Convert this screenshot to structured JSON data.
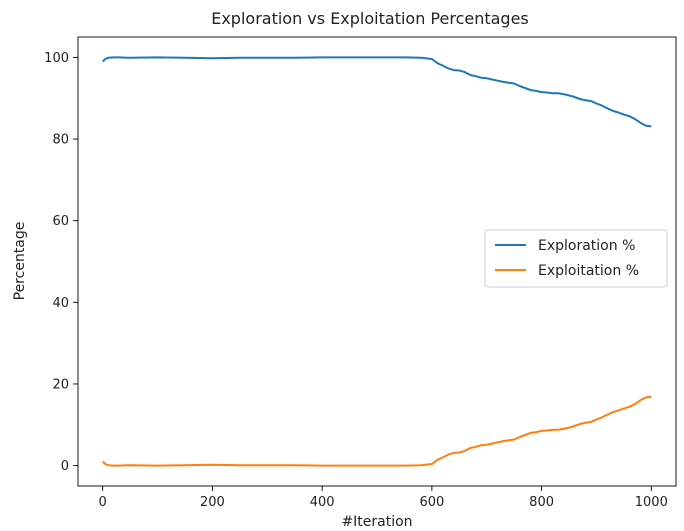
{
  "chart_data": {
    "type": "line",
    "title": "Exploration vs Exploitation Percentages",
    "xlabel": "#Iteration",
    "ylabel": "Percentage",
    "xlim": [
      -45,
      1045
    ],
    "ylim": [
      -5,
      105
    ],
    "xticks": [
      0,
      200,
      400,
      600,
      800,
      1000
    ],
    "yticks": [
      0,
      20,
      40,
      60,
      80,
      100
    ],
    "grid": false,
    "legend_position": "center-right",
    "series": [
      {
        "name": "Exploration %",
        "color": "#1f77b4",
        "x": [
          0,
          5,
          10,
          20,
          30,
          50,
          100,
          150,
          200,
          250,
          300,
          350,
          400,
          450,
          500,
          550,
          580,
          600,
          610,
          620,
          630,
          640,
          650,
          660,
          670,
          680,
          690,
          700,
          710,
          720,
          730,
          740,
          750,
          760,
          770,
          780,
          790,
          800,
          810,
          820,
          830,
          840,
          850,
          860,
          870,
          880,
          890,
          900,
          910,
          920,
          930,
          940,
          950,
          960,
          970,
          980,
          990,
          1000
        ],
        "y": [
          99.0,
          99.6,
          99.9,
          100.0,
          100.0,
          99.9,
          100.0,
          99.9,
          99.8,
          99.9,
          99.9,
          99.9,
          100.0,
          100.0,
          100.0,
          100.0,
          99.9,
          99.6,
          98.6,
          98.0,
          97.3,
          96.9,
          96.8,
          96.4,
          95.7,
          95.4,
          95.0,
          94.9,
          94.6,
          94.3,
          94.0,
          93.8,
          93.6,
          93.0,
          92.5,
          92.0,
          91.8,
          91.5,
          91.4,
          91.2,
          91.2,
          91.0,
          90.7,
          90.3,
          89.8,
          89.5,
          89.3,
          88.7,
          88.2,
          87.5,
          86.9,
          86.5,
          86.0,
          85.6,
          84.9,
          84.0,
          83.3,
          83.1
        ]
      },
      {
        "name": "Exploitation %",
        "color": "#ff7f0e",
        "x": [
          0,
          5,
          10,
          20,
          30,
          50,
          100,
          150,
          200,
          250,
          300,
          350,
          400,
          450,
          500,
          550,
          580,
          600,
          610,
          620,
          630,
          640,
          650,
          660,
          670,
          680,
          690,
          700,
          710,
          720,
          730,
          740,
          750,
          760,
          770,
          780,
          790,
          800,
          810,
          820,
          830,
          840,
          850,
          860,
          870,
          880,
          890,
          900,
          910,
          920,
          930,
          940,
          950,
          960,
          970,
          980,
          990,
          1000
        ],
        "y": [
          1.0,
          0.4,
          0.1,
          0.0,
          0.0,
          0.1,
          0.0,
          0.1,
          0.2,
          0.1,
          0.1,
          0.1,
          0.0,
          0.0,
          0.0,
          0.0,
          0.1,
          0.4,
          1.4,
          2.0,
          2.7,
          3.1,
          3.2,
          3.6,
          4.3,
          4.6,
          5.0,
          5.1,
          5.4,
          5.7,
          6.0,
          6.2,
          6.4,
          7.0,
          7.5,
          8.0,
          8.2,
          8.5,
          8.6,
          8.8,
          8.8,
          9.0,
          9.3,
          9.7,
          10.2,
          10.5,
          10.7,
          11.3,
          11.8,
          12.5,
          13.1,
          13.5,
          14.0,
          14.4,
          15.1,
          16.0,
          16.7,
          16.9
        ]
      }
    ]
  }
}
